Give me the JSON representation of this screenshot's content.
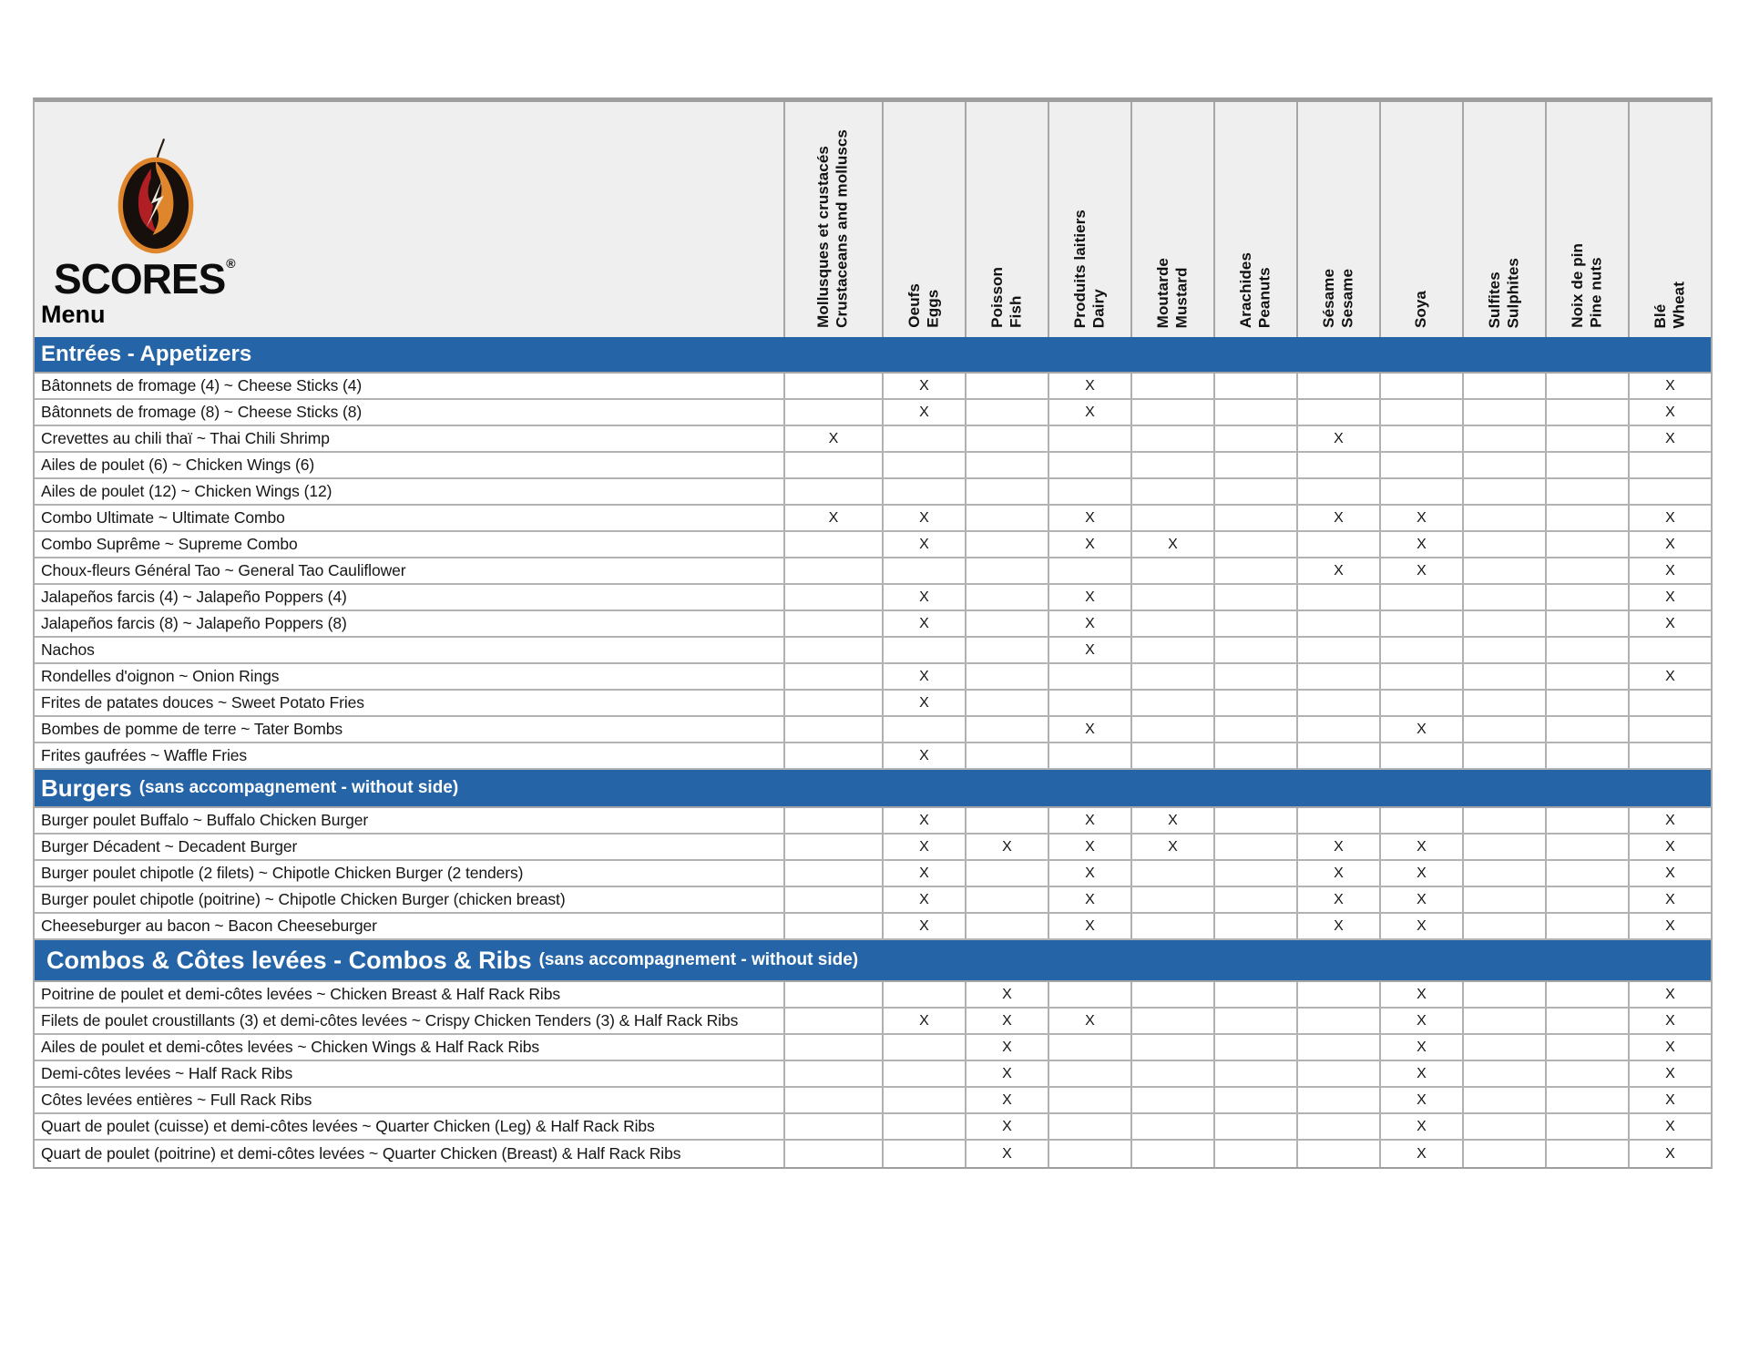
{
  "brand": {
    "name": "SCORES",
    "reg": "®",
    "menu_label": "Menu"
  },
  "colors": {
    "section_bar_blue": "#2464a7",
    "header_background": "#efefef",
    "grid_border": "#a6a6a6",
    "logo_orange": "#df862c",
    "logo_red": "#b01f24",
    "logo_black": "#160f0c"
  },
  "columns": [
    {
      "fr": "Mollusques et crustacés",
      "en": "Crustaceans and molluscs"
    },
    {
      "fr": "Oeufs",
      "en": "Eggs"
    },
    {
      "fr": "Poisson",
      "en": "Fish"
    },
    {
      "fr": "Produits laitiers",
      "en": "Dairy"
    },
    {
      "fr": "Moutarde",
      "en": "Mustard"
    },
    {
      "fr": "Arachides",
      "en": "Peanuts"
    },
    {
      "fr": "Sésame",
      "en": "Sesame"
    },
    {
      "fr": "Soya",
      "en": ""
    },
    {
      "fr": "Sulfites",
      "en": "Sulphites"
    },
    {
      "fr": "Noix de pin",
      "en": "Pine nuts"
    },
    {
      "fr": "Blé",
      "en": "Wheat"
    }
  ],
  "mark_glyph": "X",
  "sections": [
    {
      "title": "Entrées - Appetizers",
      "subtitle": "",
      "rows": [
        {
          "name": "Bâtonnets de fromage (4) ~ Cheese Sticks (4)",
          "marks": [
            "",
            "X",
            "",
            "X",
            "",
            "",
            "",
            "",
            "",
            "",
            "X"
          ]
        },
        {
          "name": "Bâtonnets de fromage (8) ~ Cheese Sticks (8)",
          "marks": [
            "",
            "X",
            "",
            "X",
            "",
            "",
            "",
            "",
            "",
            "",
            "X"
          ]
        },
        {
          "name": "Crevettes au chili thaï ~ Thai Chili Shrimp",
          "marks": [
            "X",
            "",
            "",
            "",
            "",
            "",
            "X",
            "",
            "",
            "",
            "X"
          ]
        },
        {
          "name": "Ailes de poulet (6) ~ Chicken Wings (6)",
          "marks": [
            "",
            "",
            "",
            "",
            "",
            "",
            "",
            "",
            "",
            "",
            ""
          ]
        },
        {
          "name": "Ailes de poulet (12) ~ Chicken Wings (12)",
          "marks": [
            "",
            "",
            "",
            "",
            "",
            "",
            "",
            "",
            "",
            "",
            ""
          ]
        },
        {
          "name": "Combo Ultimate ~ Ultimate Combo",
          "marks": [
            "X",
            "X",
            "",
            "X",
            "",
            "",
            "X",
            "X",
            "",
            "",
            "X"
          ]
        },
        {
          "name": "Combo Suprême ~ Supreme Combo",
          "marks": [
            "",
            "X",
            "",
            "X",
            "X",
            "",
            "",
            "X",
            "",
            "",
            "X"
          ]
        },
        {
          "name": "Choux-fleurs Général Tao ~ General Tao Cauliflower",
          "marks": [
            "",
            "",
            "",
            "",
            "",
            "",
            "X",
            "X",
            "",
            "",
            "X"
          ]
        },
        {
          "name": "Jalapeños farcis (4) ~ Jalapeño Poppers (4)",
          "marks": [
            "",
            "X",
            "",
            "X",
            "",
            "",
            "",
            "",
            "",
            "",
            "X"
          ]
        },
        {
          "name": "Jalapeños farcis (8) ~ Jalapeño Poppers (8)",
          "marks": [
            "",
            "X",
            "",
            "X",
            "",
            "",
            "",
            "",
            "",
            "",
            "X"
          ]
        },
        {
          "name": "Nachos",
          "marks": [
            "",
            "",
            "",
            "X",
            "",
            "",
            "",
            "",
            "",
            "",
            ""
          ]
        },
        {
          "name": "Rondelles d'oignon ~ Onion Rings",
          "marks": [
            "",
            "X",
            "",
            "",
            "",
            "",
            "",
            "",
            "",
            "",
            "X"
          ]
        },
        {
          "name": "Frites de patates douces ~ Sweet Potato Fries",
          "marks": [
            "",
            "X",
            "",
            "",
            "",
            "",
            "",
            "",
            "",
            "",
            ""
          ]
        },
        {
          "name": "Bombes de pomme de terre ~ Tater Bombs",
          "marks": [
            "",
            "",
            "",
            "X",
            "",
            "",
            "",
            "X",
            "",
            "",
            ""
          ]
        },
        {
          "name": "Frites gaufrées ~ Waffle Fries",
          "marks": [
            "",
            "X",
            "",
            "",
            "",
            "",
            "",
            "",
            "",
            "",
            ""
          ]
        }
      ]
    },
    {
      "title": "Burgers",
      "subtitle": "(sans accompagnement - without side)",
      "rows": [
        {
          "name": "Burger poulet Buffalo ~ Buffalo Chicken Burger",
          "marks": [
            "",
            "X",
            "",
            "X",
            "X",
            "",
            "",
            "",
            "",
            "",
            "X"
          ]
        },
        {
          "name": "Burger Décadent ~ Decadent Burger",
          "marks": [
            "",
            "X",
            "X",
            "X",
            "X",
            "",
            "X",
            "X",
            "",
            "",
            "X"
          ]
        },
        {
          "name": "Burger poulet chipotle (2 filets) ~ Chipotle Chicken Burger (2 tenders)",
          "marks": [
            "",
            "X",
            "",
            "X",
            "",
            "",
            "X",
            "X",
            "",
            "",
            "X"
          ]
        },
        {
          "name": "Burger poulet chipotle (poitrine) ~ Chipotle Chicken Burger (chicken breast)",
          "marks": [
            "",
            "X",
            "",
            "X",
            "",
            "",
            "X",
            "X",
            "",
            "",
            "X"
          ]
        },
        {
          "name": "Cheeseburger au bacon ~ Bacon Cheeseburger",
          "marks": [
            "",
            "X",
            "",
            "X",
            "",
            "",
            "X",
            "X",
            "",
            "",
            "X"
          ]
        }
      ]
    },
    {
      "title": "Combos & Côtes levées - Combos & Ribs",
      "subtitle": "(sans accompagnement - without side)",
      "rows": [
        {
          "name": "Poitrine de poulet et demi-côtes levées ~ Chicken Breast & Half Rack Ribs",
          "marks": [
            "",
            "",
            "X",
            "",
            "",
            "",
            "",
            "X",
            "",
            "",
            "X"
          ]
        },
        {
          "name": "Filets de poulet croustillants (3) et demi-côtes levées ~ Crispy Chicken Tenders (3) & Half Rack Ribs",
          "marks": [
            "",
            "X",
            "X",
            "X",
            "",
            "",
            "",
            "X",
            "",
            "",
            "X"
          ]
        },
        {
          "name": "Ailes de poulet et demi-côtes levées ~ Chicken Wings & Half Rack Ribs",
          "marks": [
            "",
            "",
            "X",
            "",
            "",
            "",
            "",
            "X",
            "",
            "",
            "X"
          ]
        },
        {
          "name": "Demi-côtes levées ~ Half Rack Ribs",
          "marks": [
            "",
            "",
            "X",
            "",
            "",
            "",
            "",
            "X",
            "",
            "",
            "X"
          ]
        },
        {
          "name": "Côtes levées entières ~ Full Rack Ribs",
          "marks": [
            "",
            "",
            "X",
            "",
            "",
            "",
            "",
            "X",
            "",
            "",
            "X"
          ]
        },
        {
          "name": "Quart de poulet (cuisse) et demi-côtes levées ~ Quarter Chicken (Leg) & Half Rack  Ribs",
          "marks": [
            "",
            "",
            "X",
            "",
            "",
            "",
            "",
            "X",
            "",
            "",
            "X"
          ]
        },
        {
          "name": "Quart de poulet (poitrine) et demi-côtes levées ~ Quarter Chicken (Breast) & Half Rack Ribs",
          "marks": [
            "",
            "",
            "X",
            "",
            "",
            "",
            "",
            "X",
            "",
            "",
            "X"
          ]
        }
      ]
    }
  ]
}
